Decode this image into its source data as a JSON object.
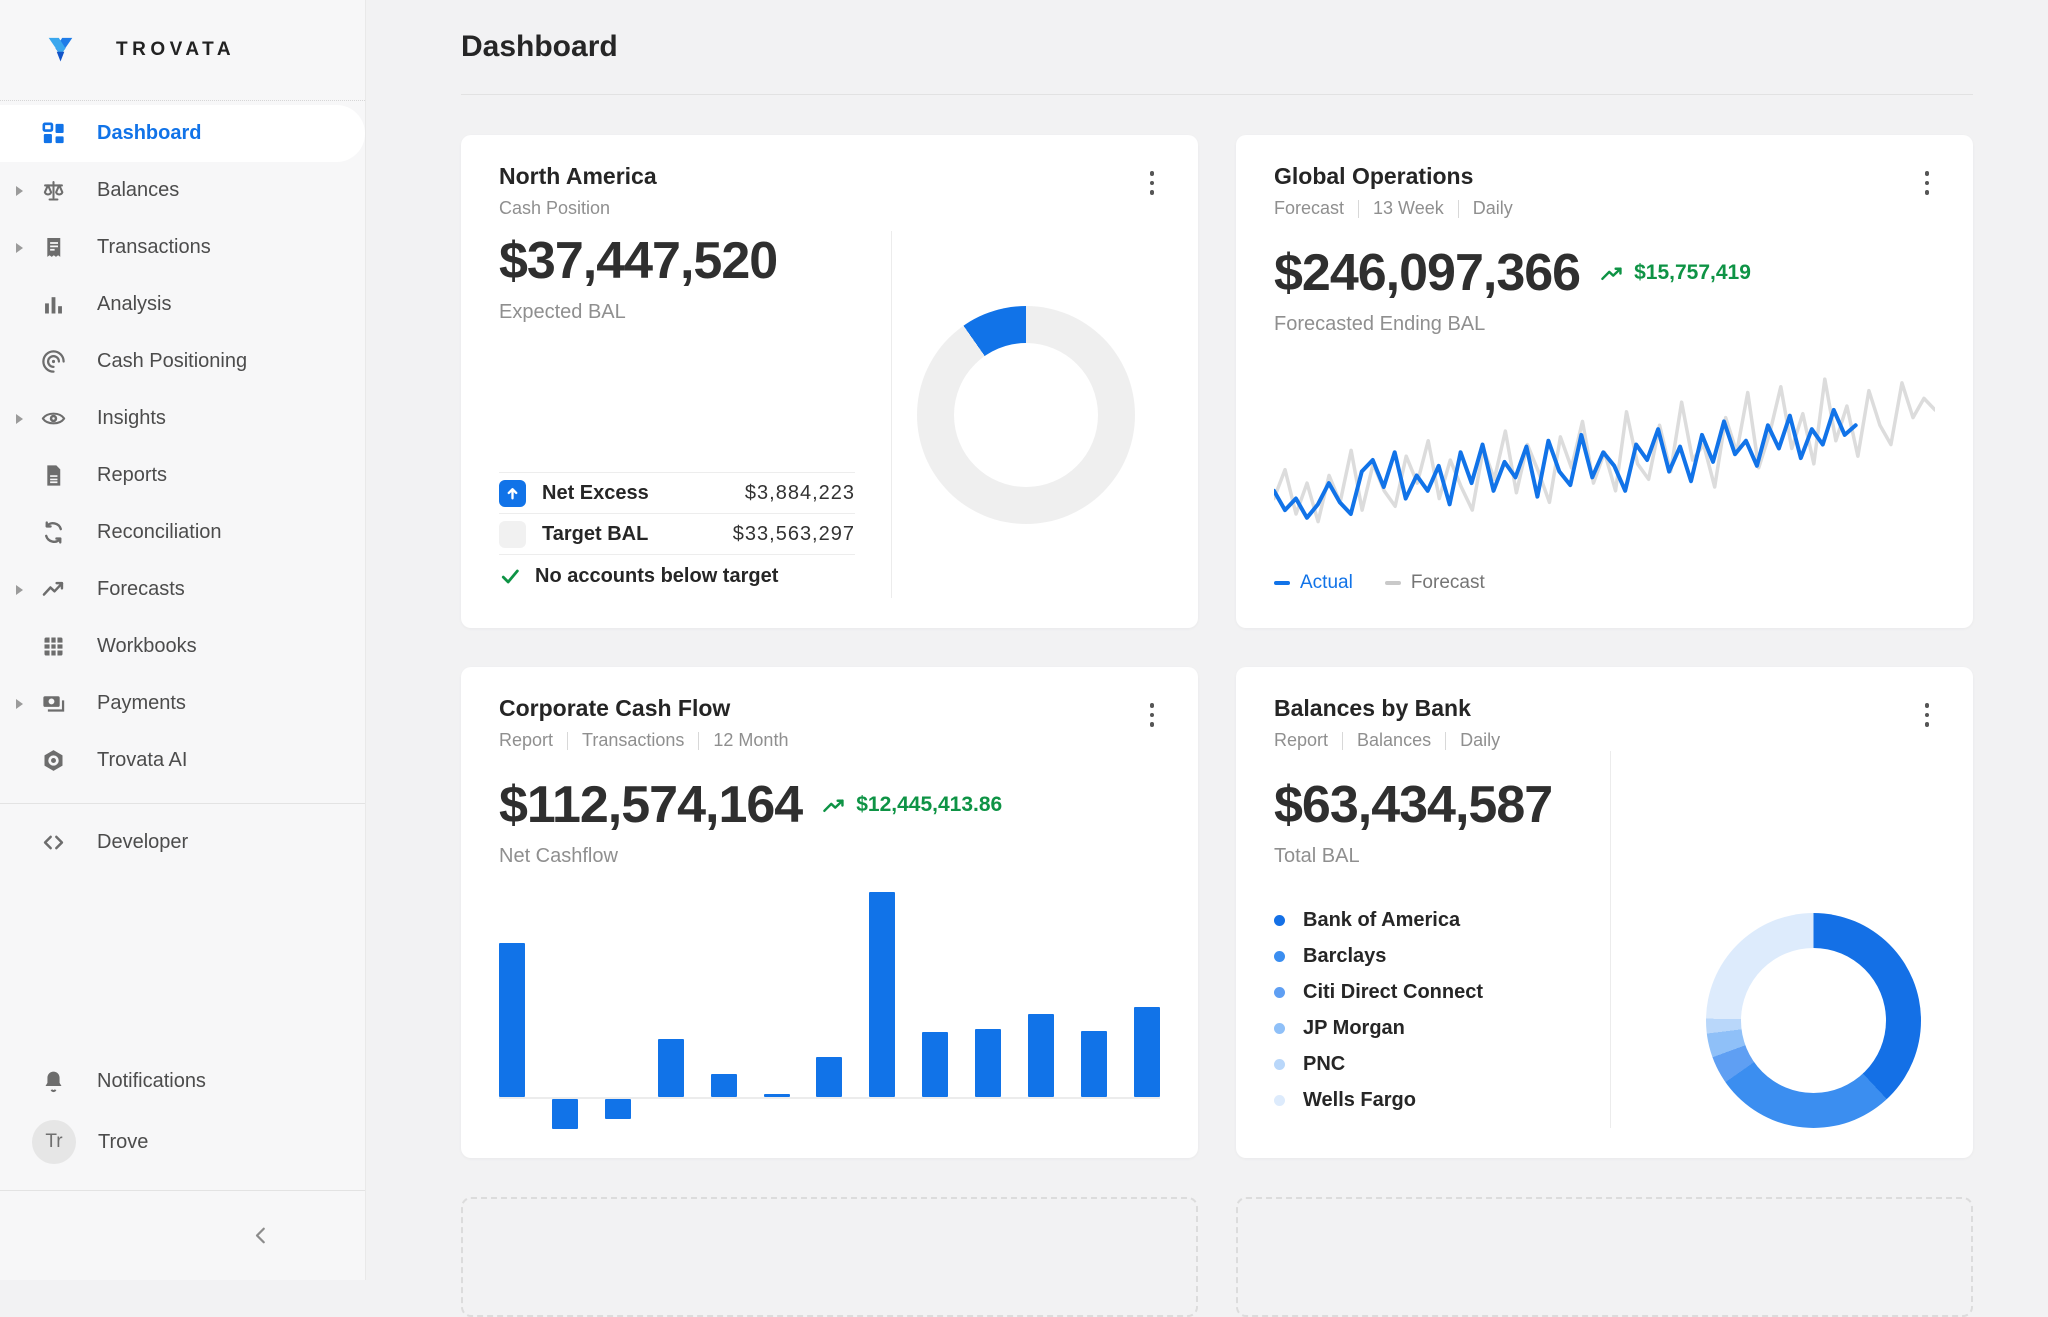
{
  "app": {
    "brand": "TROVATA",
    "page_title": "Dashboard"
  },
  "colors": {
    "accent_blue": "#1173e8",
    "positive_green": "#0e9345",
    "muted_gray": "#8f8f8f",
    "forecast_gray": "#dcdcdc"
  },
  "sidebar": {
    "items": [
      {
        "label": "Dashboard",
        "icon": "dashboard-icon",
        "active": true,
        "expandable": false
      },
      {
        "label": "Balances",
        "icon": "balances-icon",
        "active": false,
        "expandable": true
      },
      {
        "label": "Transactions",
        "icon": "transactions-icon",
        "active": false,
        "expandable": true
      },
      {
        "label": "Analysis",
        "icon": "analysis-icon",
        "active": false,
        "expandable": false
      },
      {
        "label": "Cash Positioning",
        "icon": "cash-positioning-icon",
        "active": false,
        "expandable": false
      },
      {
        "label": "Insights",
        "icon": "insights-icon",
        "active": false,
        "expandable": true
      },
      {
        "label": "Reports",
        "icon": "reports-icon",
        "active": false,
        "expandable": false
      },
      {
        "label": "Reconciliation",
        "icon": "reconciliation-icon",
        "active": false,
        "expandable": false
      },
      {
        "label": "Forecasts",
        "icon": "forecasts-icon",
        "active": false,
        "expandable": true
      },
      {
        "label": "Workbooks",
        "icon": "workbooks-icon",
        "active": false,
        "expandable": false
      },
      {
        "label": "Payments",
        "icon": "payments-icon",
        "active": false,
        "expandable": true
      },
      {
        "label": "Trovata AI",
        "icon": "trovata-ai-icon",
        "active": false,
        "expandable": false
      }
    ],
    "developer_label": "Developer",
    "notifications_label": "Notifications",
    "user": {
      "initials": "Tr",
      "name": "Trove"
    }
  },
  "cards": {
    "north_america": {
      "title": "North America",
      "subtitle": "Cash Position",
      "value": "$37,447,520",
      "value_label": "Expected BAL",
      "net_excess_label": "Net Excess",
      "net_excess_value": "$3,884,223",
      "target_bal_label": "Target BAL",
      "target_bal_value": "$33,563,297",
      "status": "No accounts below target"
    },
    "global_operations": {
      "title": "Global Operations",
      "meta": [
        "Forecast",
        "13 Week",
        "Daily"
      ],
      "value": "$246,097,366",
      "delta": "$15,757,419",
      "value_label": "Forecasted Ending BAL",
      "legend": {
        "actual": "Actual",
        "forecast": "Forecast"
      }
    },
    "corporate_cash_flow": {
      "title": "Corporate Cash Flow",
      "meta": [
        "Report",
        "Transactions",
        "12 Month"
      ],
      "value": "$112,574,164",
      "delta": "$12,445,413.86",
      "value_label": "Net Cashflow"
    },
    "balances_by_bank": {
      "title": "Balances by Bank",
      "meta": [
        "Report",
        "Balances",
        "Daily"
      ],
      "value": "$63,434,587",
      "value_label": "Total BAL",
      "banks": [
        "Bank of America",
        "Barclays",
        "Citi Direct Connect",
        "JP Morgan",
        "PNC",
        "Wells Fargo"
      ]
    }
  },
  "chart_data": [
    {
      "id": "north-america-donut",
      "type": "pie",
      "title": "Cash Position vs Target",
      "rotation_deg": -35,
      "slices": [
        {
          "label": "Net Excess",
          "value_deg": 35,
          "color": "#1173e8"
        },
        {
          "label": "Target BAL",
          "value_deg": 325,
          "color": "#efefef"
        }
      ],
      "legend_position": "none"
    },
    {
      "id": "global-operations-line",
      "type": "line",
      "title": "Forecasted Ending BAL, 13 Week Daily",
      "y_range": [
        0,
        100
      ],
      "grid": false,
      "axes_hidden": true,
      "legend_position": "bottom-left",
      "series": [
        {
          "name": "Forecast",
          "color": "#dcdcdc",
          "x_extent": 1.0,
          "values": [
            30,
            45,
            22,
            38,
            18,
            42,
            28,
            55,
            24,
            48,
            34,
            26,
            52,
            38,
            60,
            30,
            50,
            36,
            24,
            56,
            40,
            65,
            33,
            58,
            44,
            28,
            62,
            46,
            70,
            38,
            54,
            34,
            75,
            48,
            40,
            68,
            44,
            80,
            50,
            58,
            36,
            72,
            54,
            85,
            46,
            64,
            88,
            56,
            74,
            48,
            92,
            60,
            78,
            52,
            86,
            68,
            58,
            90,
            72,
            82,
            76
          ]
        },
        {
          "name": "Actual",
          "color": "#1173e8",
          "x_extent": 0.88,
          "values": [
            34,
            24,
            30,
            20,
            27,
            38,
            28,
            22,
            44,
            50,
            36,
            54,
            30,
            42,
            34,
            47,
            27,
            54,
            38,
            58,
            34,
            49,
            41,
            57,
            31,
            60,
            44,
            37,
            63,
            41,
            54,
            47,
            34,
            58,
            50,
            66,
            44,
            57,
            39,
            63,
            49,
            70,
            53,
            60,
            47,
            68,
            56,
            73,
            51,
            66,
            58,
            76,
            63,
            68
          ]
        }
      ]
    },
    {
      "id": "corporate-cash-flow-bars",
      "type": "bar",
      "title": "Net Cashflow by month (estimated, USD millions)",
      "color": "#1173e8",
      "baseline": 0,
      "values": [
        22.5,
        -4.4,
        -2.9,
        8.5,
        3.4,
        0.4,
        5.8,
        30,
        9.5,
        10,
        12.1,
        9.7,
        13.1
      ],
      "axes_hidden": true
    },
    {
      "id": "balances-by-bank-donut",
      "type": "pie",
      "title": "Total BAL by bank (share of ring, degrees)",
      "rotation_deg": 0,
      "slices": [
        {
          "label": "Bank of America",
          "value_deg": 137,
          "color": "#1470e6"
        },
        {
          "label": "Barclays",
          "value_deg": 98,
          "color": "#3b8ef0"
        },
        {
          "label": "Citi Direct Connect",
          "value_deg": 15,
          "color": "#5f9ff3"
        },
        {
          "label": "JP Morgan",
          "value_deg": 13,
          "color": "#8fc0f8"
        },
        {
          "label": "PNC",
          "value_deg": 8,
          "color": "#b9d7fa"
        },
        {
          "label": "Wells Fargo",
          "value_deg": 89,
          "color": "#ddebfc"
        }
      ],
      "legend_position": "left-list"
    }
  ]
}
